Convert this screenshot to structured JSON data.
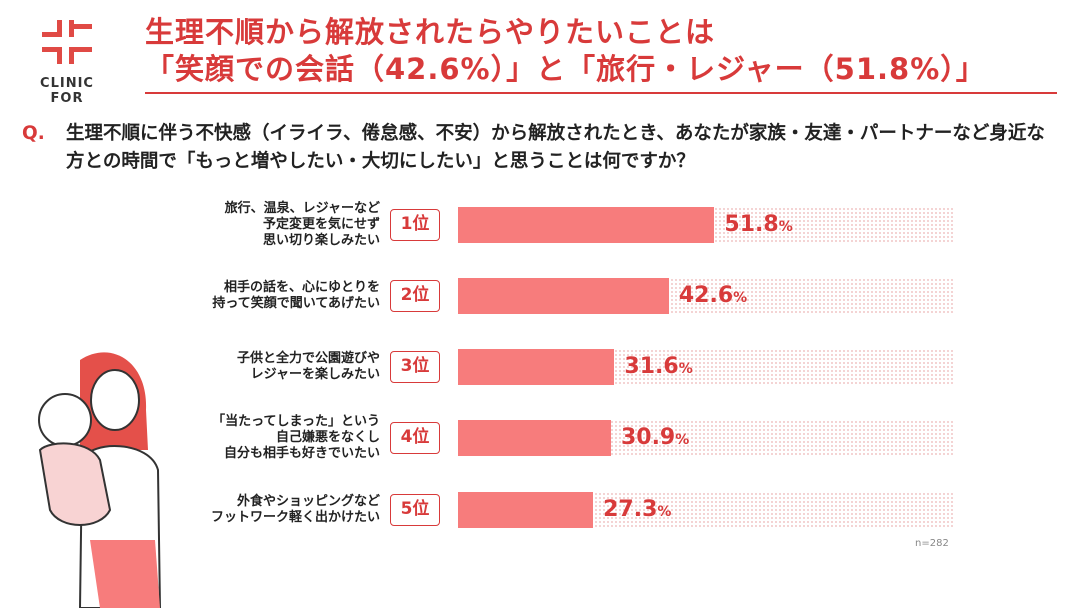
{
  "logo": {
    "text": "CLINIC FOR"
  },
  "title": {
    "line1": "生理不順から解放されたらやりたいことは",
    "line2": "「笑顔での会話（42.6%）」と「旅行・レジャー（51.8%）」"
  },
  "question": {
    "mark": "Q.",
    "text": "生理不順に伴う不快感（イライラ、倦怠感、不安）から解放されたとき、あなたが家族・友達・パートナーなど身近な方との時間で「もっと増やしたい・大切にしたい」と思うことは何ですか？"
  },
  "colors": {
    "accent": "#d83a3a",
    "bar": "#f77c7c"
  },
  "chart_data": {
    "type": "bar",
    "orientation": "horizontal",
    "xlim": [
      0,
      100
    ],
    "unit": "%",
    "categories": [
      "旅行、温泉、レジャーなど\n予定変更を気にせず\n思い切り楽しみたい",
      "相手の話を、心にゆとりを\n持って笑顔で聞いてあげたい",
      "子供と全力で公園遊びや\nレジャーを楽しみたい",
      "「当たってしまった」という\n自己嫌悪をなくし\n自分も相手も好きでいたい",
      "外食やショッピングなど\nフットワーク軽く出かけたい"
    ],
    "ranks": [
      "1位",
      "2位",
      "3位",
      "4位",
      "5位"
    ],
    "values": [
      51.8,
      42.6,
      31.6,
      30.9,
      27.3
    ],
    "value_labels": [
      "51.8",
      "42.6",
      "31.6",
      "30.9",
      "27.3"
    ],
    "note": "n=282"
  }
}
